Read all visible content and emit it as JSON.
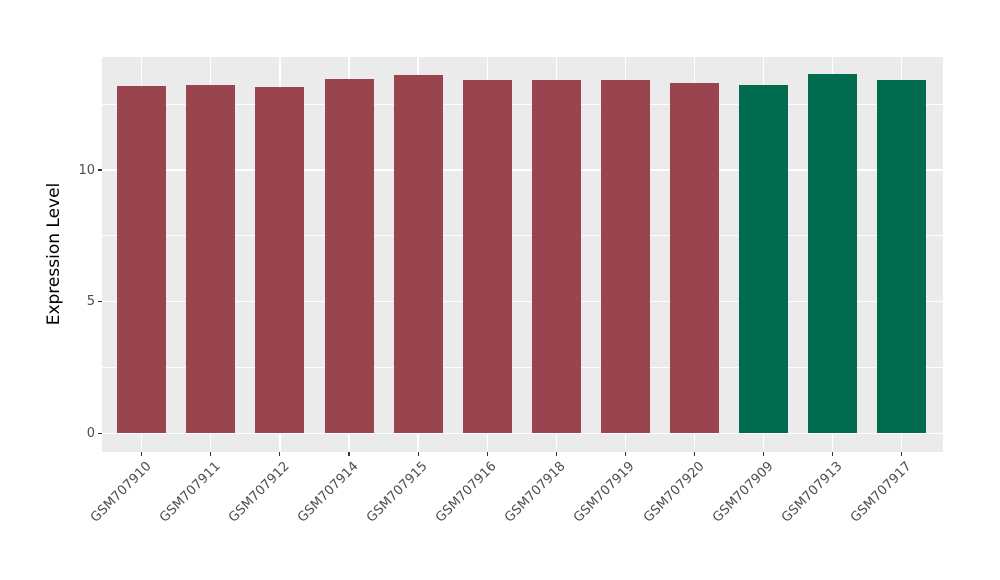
{
  "chart_data": {
    "type": "bar",
    "title": "",
    "xlabel": "",
    "ylabel": "Expression Level",
    "ylim": [
      0,
      14.3
    ],
    "yticks": [
      0,
      5,
      10
    ],
    "minor_gridlines": [
      2.5,
      7.5,
      12.5
    ],
    "grid": "on",
    "legend_position": "none",
    "panel_background": "#EBEBEB",
    "gridline_color": "#FFFFFF",
    "axis_text_color": "#4D4D4D",
    "palette": {
      "red_group": "#9A4450",
      "green_group": "#006B4E"
    },
    "categories": [
      "GSM707910",
      "GSM707911",
      "GSM707912",
      "GSM707914",
      "GSM707915",
      "GSM707916",
      "GSM707918",
      "GSM707919",
      "GSM707920",
      "GSM707909",
      "GSM707913",
      "GSM707917"
    ],
    "values": [
      13.18,
      13.24,
      13.15,
      13.46,
      13.62,
      13.4,
      13.4,
      13.4,
      13.3,
      13.21,
      13.65,
      13.42
    ],
    "bar_colors": [
      "#9A4450",
      "#9A4450",
      "#9A4450",
      "#9A4450",
      "#9A4450",
      "#9A4450",
      "#9A4450",
      "#9A4450",
      "#9A4450",
      "#006B4E",
      "#006B4E",
      "#006B4E"
    ]
  }
}
